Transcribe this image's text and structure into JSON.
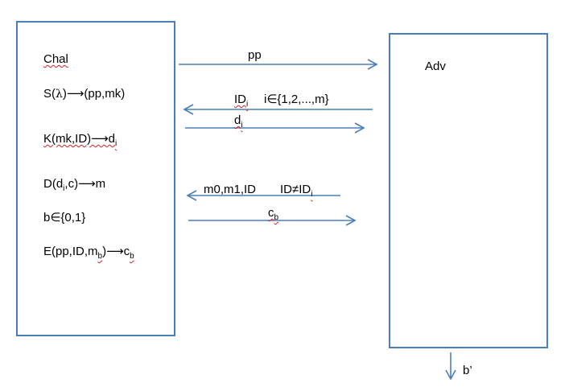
{
  "challenger": {
    "title": "Chal",
    "setup_pre": "S(",
    "lambda": "λ",
    "setup_post": ")⟶(pp,mk)",
    "keygen": "K(mk,ID)⟶d",
    "keygen_sub": "i",
    "dec_pre": "D(d",
    "dec_sub": "i",
    "dec_post": ",c)⟶m",
    "bit_choice": "b∈{0,1}",
    "enc_pre": "E(pp,ID,m",
    "enc_sub": "b",
    "enc_post": ")⟶c",
    "enc_out_sub": "b"
  },
  "adversary": {
    "title": "Adv",
    "output": "b’"
  },
  "messages": {
    "pp": "pp",
    "id_query": "ID",
    "id_query_sub": "i",
    "id_range": "i∈{1,2,...,m}",
    "key_reply": "d",
    "key_reply_sub": "i",
    "challenge_query": "m0,m1,ID",
    "challenge_cond": "ID≠ID",
    "challenge_cond_sub": "i",
    "ciphertext": "c",
    "ciphertext_sub": "b"
  },
  "colors": {
    "box_border": "#4a7ebb",
    "arrow": "#4a7ebb",
    "spell_underline": "#d02020"
  }
}
